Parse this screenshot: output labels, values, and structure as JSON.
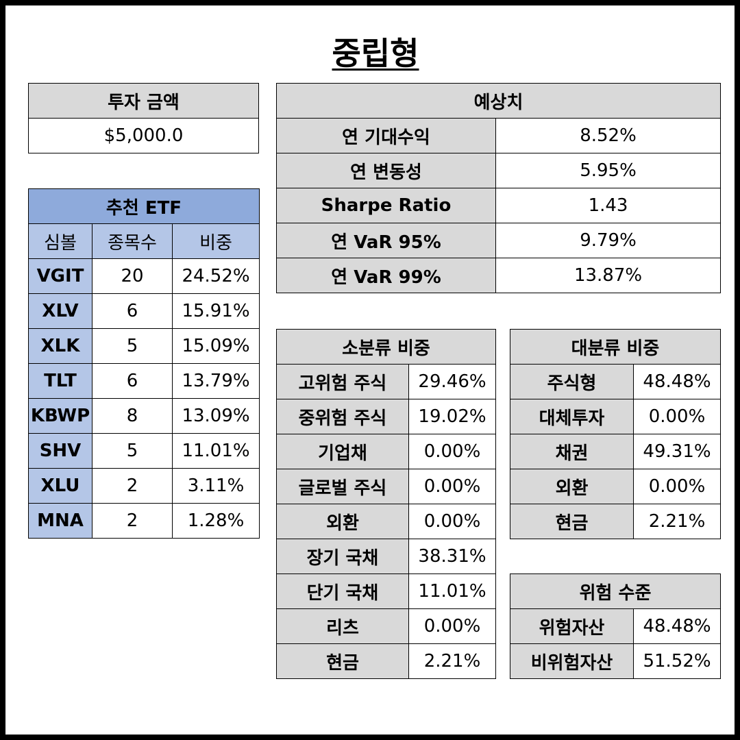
{
  "title": "중립형",
  "investment": {
    "header": "투자 금액",
    "amount": "$5,000.0"
  },
  "expected": {
    "header": "예상치",
    "rows": [
      {
        "label": "연 기대수익",
        "value": "8.52%"
      },
      {
        "label": "연 변동성",
        "value": "5.95%"
      },
      {
        "label": "Sharpe Ratio",
        "value": "1.43"
      },
      {
        "label": "연 VaR 95%",
        "value": "9.79%"
      },
      {
        "label": "연 VaR 99%",
        "value": "13.87%"
      }
    ]
  },
  "etf": {
    "header": "추천 ETF",
    "columns": [
      "심볼",
      "종목수",
      "비중"
    ],
    "rows": [
      {
        "symbol": "VGIT",
        "count": "20",
        "weight": "24.52%"
      },
      {
        "symbol": "XLV",
        "count": "6",
        "weight": "15.91%"
      },
      {
        "symbol": "XLK",
        "count": "5",
        "weight": "15.09%"
      },
      {
        "symbol": "TLT",
        "count": "6",
        "weight": "13.79%"
      },
      {
        "symbol": "KBWP",
        "count": "8",
        "weight": "13.09%"
      },
      {
        "symbol": "SHV",
        "count": "5",
        "weight": "11.01%"
      },
      {
        "symbol": "XLU",
        "count": "2",
        "weight": "3.11%"
      },
      {
        "symbol": "MNA",
        "count": "2",
        "weight": "1.28%"
      }
    ]
  },
  "sub_class": {
    "header": "소분류 비중",
    "rows": [
      {
        "label": "고위험 주식",
        "value": "29.46%"
      },
      {
        "label": "중위험 주식",
        "value": "19.02%"
      },
      {
        "label": "기업채",
        "value": "0.00%"
      },
      {
        "label": "글로벌 주식",
        "value": "0.00%"
      },
      {
        "label": "외환",
        "value": "0.00%"
      },
      {
        "label": "장기 국채",
        "value": "38.31%"
      },
      {
        "label": "단기 국채",
        "value": "11.01%"
      },
      {
        "label": "리츠",
        "value": "0.00%"
      },
      {
        "label": "현금",
        "value": "2.21%"
      }
    ]
  },
  "main_class": {
    "header": "대분류 비중",
    "rows": [
      {
        "label": "주식형",
        "value": "48.48%"
      },
      {
        "label": "대체투자",
        "value": "0.00%"
      },
      {
        "label": "채권",
        "value": "49.31%"
      },
      {
        "label": "외환",
        "value": "0.00%"
      },
      {
        "label": "현금",
        "value": "2.21%"
      }
    ]
  },
  "risk": {
    "header": "위험 수준",
    "rows": [
      {
        "label": "위험자산",
        "value": "48.48%"
      },
      {
        "label": "비위험자산",
        "value": "51.52%"
      }
    ]
  },
  "colors": {
    "gray": "#d9d9d9",
    "blue_header": "#8eaadb",
    "blue_cell": "#b4c6e7"
  }
}
